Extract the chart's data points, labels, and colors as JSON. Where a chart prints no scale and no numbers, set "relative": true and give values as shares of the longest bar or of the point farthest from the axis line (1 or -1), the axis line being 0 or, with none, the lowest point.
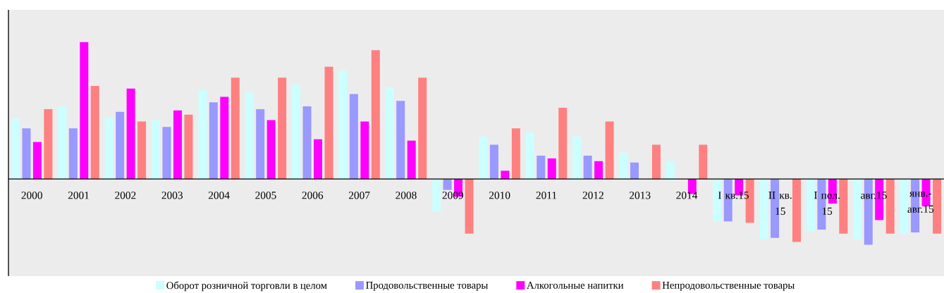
{
  "chart_data": {
    "type": "bar",
    "relative": true,
    "legend": "bottom",
    "categories": [
      "2000",
      "2001",
      "2002",
      "2003",
      "2004",
      "2005",
      "2006",
      "2007",
      "2008",
      "2009",
      "2010",
      "2011",
      "2012",
      "2013",
      "2014",
      "I кв.15",
      "II кв. 15",
      "I пол. 15",
      "авг.15",
      "янв.-авг.15"
    ],
    "series": [
      {
        "name": "Оборот розничной торговли в целом",
        "color": "#ccffff",
        "values": [
          0.44,
          0.53,
          0.45,
          0.43,
          0.65,
          0.63,
          0.69,
          0.79,
          0.67,
          -0.24,
          0.31,
          0.34,
          0.31,
          0.19,
          0.13,
          -0.31,
          -0.44,
          -0.38,
          -0.44,
          -0.4
        ]
      },
      {
        "name": "Продовольственные товары",
        "color": "#9999ff",
        "values": [
          0.37,
          0.37,
          0.49,
          0.38,
          0.56,
          0.51,
          0.53,
          0.62,
          0.57,
          -0.08,
          0.25,
          0.17,
          0.17,
          0.12,
          null,
          -0.31,
          -0.43,
          -0.37,
          -0.48,
          -0.39
        ]
      },
      {
        "name": "Алкогольные напитки",
        "color": "#ff00ff",
        "values": [
          0.27,
          1,
          0.66,
          0.5,
          0.6,
          0.43,
          0.29,
          0.42,
          0.28,
          -0.13,
          0.06,
          0.15,
          0.13,
          null,
          -0.11,
          -0.12,
          null,
          -0.18,
          -0.3,
          -0.2
        ]
      },
      {
        "name": "Непродовольственные товары",
        "color": "#ff8080",
        "values": [
          0.51,
          0.68,
          0.42,
          0.47,
          0.74,
          0.74,
          0.82,
          0.94,
          0.74,
          -0.4,
          0.37,
          0.52,
          0.42,
          0.25,
          0.25,
          -0.32,
          -0.46,
          -0.4,
          -0.4,
          -0.4
        ]
      }
    ]
  }
}
